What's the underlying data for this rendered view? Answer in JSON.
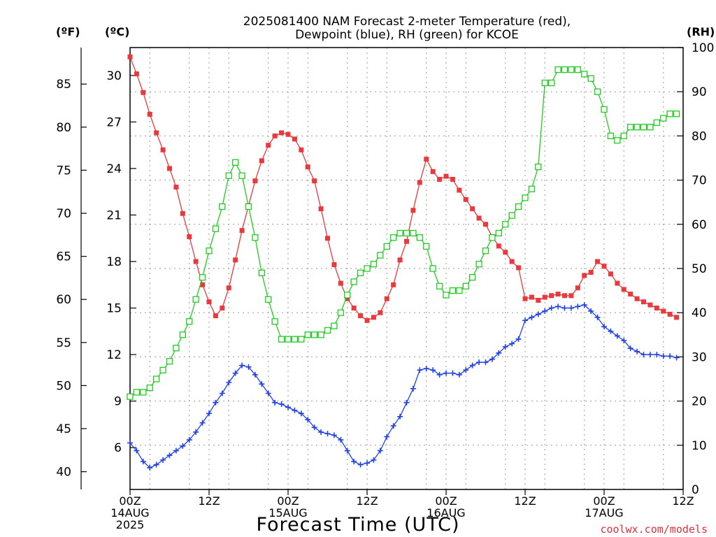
{
  "chart_data": {
    "type": "line",
    "title": "2025081400 NAM Forecast 2-meter Temperature (red),",
    "subtitle": "Dewpoint (blue), RH (green) for KCOE",
    "xlabel": "Forecast Time (UTC)",
    "watermark": "coolwx.com/models",
    "unit_labels": {
      "f": "(ºF)",
      "c": "(ºC)",
      "rh": "(RH)"
    },
    "x_range_hours": [
      0,
      84
    ],
    "x_ticks": [
      {
        "h": 0,
        "lines": [
          "00Z",
          "14AUG",
          "2025"
        ]
      },
      {
        "h": 12,
        "lines": [
          "12Z"
        ]
      },
      {
        "h": 24,
        "lines": [
          "00Z",
          "15AUG"
        ]
      },
      {
        "h": 36,
        "lines": [
          "12Z"
        ]
      },
      {
        "h": 48,
        "lines": [
          "00Z",
          "16AUG"
        ]
      },
      {
        "h": 60,
        "lines": [
          "12Z"
        ]
      },
      {
        "h": 72,
        "lines": [
          "00Z",
          "17AUG"
        ]
      },
      {
        "h": 84,
        "lines": [
          "12Z"
        ]
      }
    ],
    "y_celsius": {
      "range": [
        3.3,
        31.8
      ],
      "ticks": [
        6,
        9,
        12,
        15,
        18,
        21,
        24,
        27,
        30
      ]
    },
    "y_fahrenheit": {
      "ticks": [
        40,
        45,
        50,
        55,
        60,
        65,
        70,
        75,
        80,
        85
      ]
    },
    "y_rh": {
      "range": [
        0,
        100
      ],
      "ticks": [
        0,
        10,
        20,
        30,
        40,
        50,
        60,
        70,
        80,
        90,
        100
      ]
    },
    "grid": true,
    "colors": {
      "temperature": "#e8393c",
      "dewpoint": "#2040e8",
      "rh": "#20cc20",
      "watermark": "#e0303a"
    },
    "series": [
      {
        "name": "Temperature",
        "units": "C",
        "hours_start": 0,
        "hours_step": 1,
        "values": [
          31.2,
          30.1,
          28.9,
          27.5,
          26.3,
          25.2,
          24.0,
          22.8,
          21.1,
          19.6,
          18.0,
          16.5,
          15.4,
          14.5,
          15.0,
          16.3,
          18.1,
          20.0,
          21.6,
          23.2,
          24.5,
          25.5,
          26.1,
          26.3,
          26.2,
          25.9,
          25.2,
          24.1,
          23.2,
          21.4,
          19.5,
          17.8,
          16.6,
          15.6,
          15.0,
          14.5,
          14.2,
          14.4,
          14.7,
          15.6,
          16.5,
          18.1,
          19.3,
          21.3,
          23.1,
          24.6,
          23.8,
          23.3,
          23.5,
          23.3,
          22.6,
          22.0,
          21.4,
          20.8,
          20.4,
          19.6,
          19.0,
          18.6,
          18.0,
          17.6,
          15.6,
          15.7,
          15.5,
          15.7,
          15.8,
          15.9,
          15.8,
          15.8,
          16.3,
          17.1,
          17.3,
          18.0,
          17.7,
          17.2,
          16.6,
          16.2,
          15.9,
          15.6,
          15.4,
          15.2,
          15.0,
          14.8,
          14.6,
          14.4
        ]
      },
      {
        "name": "Dewpoint",
        "units": "C",
        "hours_start": 0,
        "hours_step": 1,
        "values": [
          6.3,
          5.8,
          5.1,
          4.7,
          4.9,
          5.2,
          5.5,
          5.8,
          6.1,
          6.5,
          7.0,
          7.6,
          8.2,
          8.9,
          9.5,
          10.2,
          10.8,
          11.3,
          11.2,
          10.7,
          10.1,
          9.5,
          8.9,
          8.8,
          8.6,
          8.4,
          8.2,
          7.8,
          7.3,
          7.0,
          6.9,
          6.8,
          6.5,
          5.8,
          5.1,
          4.9,
          5.0,
          5.2,
          5.8,
          6.7,
          7.4,
          8.0,
          8.9,
          9.8,
          11.0,
          11.1,
          11.0,
          10.7,
          10.8,
          10.8,
          10.7,
          11.0,
          11.3,
          11.5,
          11.5,
          11.7,
          12.1,
          12.5,
          12.7,
          13.0,
          14.2,
          14.4,
          14.6,
          14.8,
          15.0,
          15.1,
          15.0,
          15.0,
          15.1,
          15.2,
          14.8,
          14.4,
          13.8,
          13.5,
          13.2,
          12.9,
          12.4,
          12.2,
          12.0,
          12.0,
          12.0,
          11.9,
          11.9,
          11.8
        ]
      },
      {
        "name": "RH",
        "units": "%",
        "hours_start": 0,
        "hours_step": 1,
        "values": [
          21,
          22,
          22,
          23,
          25,
          27,
          29,
          32,
          35,
          38,
          43,
          48,
          54,
          59,
          64,
          71,
          74,
          71,
          64,
          57,
          49,
          43,
          38,
          34,
          34,
          34,
          34,
          35,
          35,
          35,
          36,
          37,
          40,
          44,
          47,
          49,
          50,
          51,
          53,
          55,
          57,
          58,
          58,
          58,
          57,
          55,
          50,
          46,
          44,
          45,
          45,
          46,
          48,
          51,
          54,
          57,
          58,
          60,
          62,
          64,
          66,
          68,
          73,
          92,
          92,
          95,
          95,
          95,
          95,
          94,
          93,
          90,
          86,
          80,
          79,
          80,
          82,
          82,
          82,
          82,
          83,
          84,
          85,
          85
        ]
      }
    ]
  }
}
